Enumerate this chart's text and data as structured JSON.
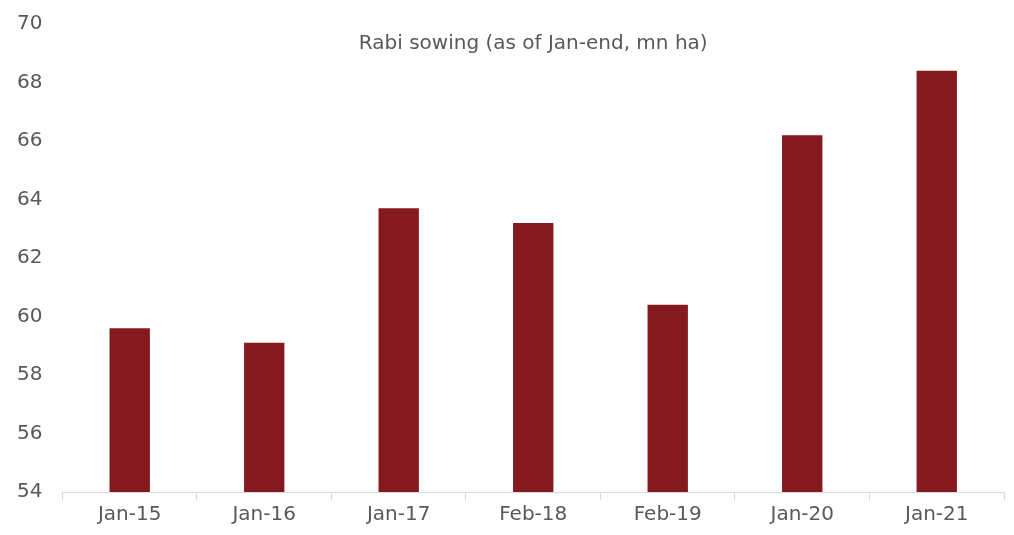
{
  "chart_data": {
    "type": "bar",
    "title": "Rabi sowing (as of Jan-end, mn ha)",
    "categories": [
      "Jan-15",
      "Jan-16",
      "Jan-17",
      "Feb-18",
      "Feb-19",
      "Jan-20",
      "Jan-21"
    ],
    "values": [
      59.6,
      59.1,
      63.7,
      63.2,
      60.4,
      66.2,
      68.4
    ],
    "color": "#841a1d",
    "ylim": [
      54,
      70
    ],
    "yticks": [
      54,
      56,
      58,
      60,
      62,
      64,
      66,
      68,
      70
    ],
    "grid": false,
    "legend": false
  }
}
